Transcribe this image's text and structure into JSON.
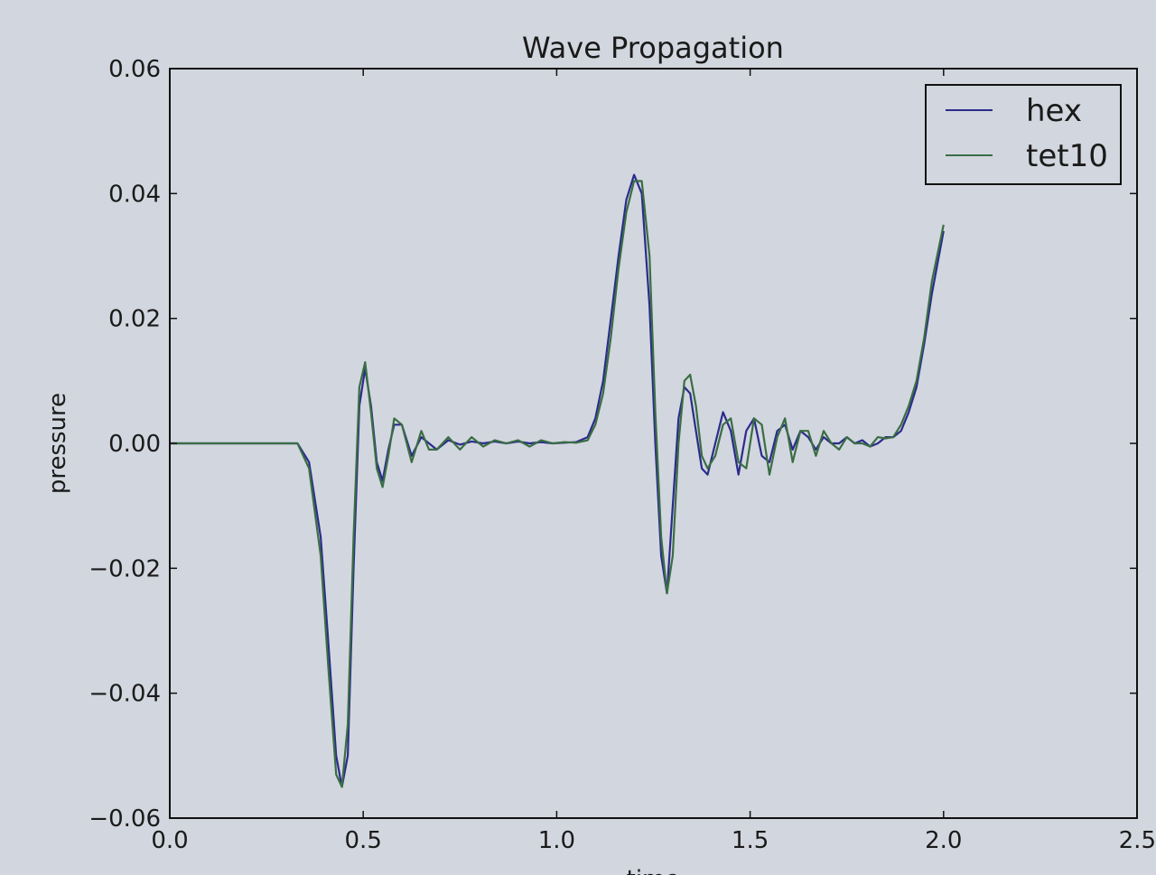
{
  "chart_data": {
    "type": "line",
    "title": "Wave Propagation",
    "xlabel": "time",
    "ylabel": "pressure",
    "xlim": [
      0.0,
      2.5
    ],
    "ylim": [
      -0.06,
      0.06
    ],
    "xticks": [
      "0.0",
      "0.5",
      "1.0",
      "1.5",
      "2.0",
      "2.5"
    ],
    "xtick_values": [
      0.0,
      0.5,
      1.0,
      1.5,
      2.0,
      2.5
    ],
    "yticks": [
      "0.06",
      "0.04",
      "0.02",
      "0.00",
      "−0.02",
      "−0.04",
      "−0.06"
    ],
    "ytick_values": [
      0.06,
      0.04,
      0.02,
      0.0,
      -0.02,
      -0.04,
      -0.06
    ],
    "grid": false,
    "legend_position": "top-right",
    "series": [
      {
        "name": "hex",
        "color": "#2b2b8c",
        "x": [
          0.0,
          0.3,
          0.33,
          0.36,
          0.39,
          0.41,
          0.43,
          0.445,
          0.46,
          0.475,
          0.49,
          0.505,
          0.52,
          0.535,
          0.55,
          0.565,
          0.58,
          0.6,
          0.625,
          0.65,
          0.67,
          0.69,
          0.72,
          0.75,
          0.78,
          0.81,
          0.84,
          0.87,
          0.9,
          0.93,
          0.96,
          0.99,
          1.02,
          1.05,
          1.08,
          1.1,
          1.12,
          1.14,
          1.16,
          1.18,
          1.2,
          1.22,
          1.24,
          1.255,
          1.27,
          1.285,
          1.3,
          1.315,
          1.33,
          1.345,
          1.36,
          1.375,
          1.39,
          1.41,
          1.43,
          1.45,
          1.47,
          1.49,
          1.51,
          1.53,
          1.55,
          1.57,
          1.59,
          1.61,
          1.63,
          1.65,
          1.67,
          1.69,
          1.71,
          1.73,
          1.75,
          1.77,
          1.79,
          1.81,
          1.83,
          1.85,
          1.87,
          1.89,
          1.91,
          1.93,
          1.95,
          1.97,
          2.0
        ],
        "y": [
          0.0,
          0.0,
          0.0,
          -0.003,
          -0.015,
          -0.032,
          -0.05,
          -0.055,
          -0.05,
          -0.02,
          0.006,
          0.012,
          0.006,
          -0.003,
          -0.006,
          -0.001,
          0.003,
          0.003,
          -0.002,
          0.001,
          0.0,
          -0.001,
          0.0005,
          -0.0002,
          0.0003,
          0.0,
          0.0003,
          0.0,
          0.0003,
          0.0,
          0.0002,
          0.0,
          0.0001,
          0.0002,
          0.001,
          0.004,
          0.01,
          0.02,
          0.03,
          0.039,
          0.043,
          0.04,
          0.022,
          0.0,
          -0.018,
          -0.024,
          -0.01,
          0.004,
          0.009,
          0.008,
          0.002,
          -0.004,
          -0.005,
          0.0,
          0.005,
          0.002,
          -0.005,
          0.002,
          0.004,
          -0.002,
          -0.003,
          0.002,
          0.003,
          -0.001,
          0.002,
          0.001,
          -0.001,
          0.001,
          0.0,
          0.0,
          0.001,
          0.0,
          0.0005,
          -0.0005,
          0.0,
          0.001,
          0.001,
          0.002,
          0.005,
          0.009,
          0.016,
          0.024,
          0.034
        ]
      },
      {
        "name": "tet10",
        "color": "#3a6e44",
        "x": [
          0.0,
          0.3,
          0.33,
          0.36,
          0.39,
          0.41,
          0.43,
          0.445,
          0.46,
          0.475,
          0.49,
          0.505,
          0.52,
          0.535,
          0.55,
          0.565,
          0.58,
          0.6,
          0.625,
          0.65,
          0.67,
          0.69,
          0.72,
          0.75,
          0.78,
          0.81,
          0.84,
          0.87,
          0.9,
          0.93,
          0.96,
          0.99,
          1.02,
          1.05,
          1.08,
          1.1,
          1.12,
          1.14,
          1.16,
          1.18,
          1.2,
          1.22,
          1.24,
          1.255,
          1.27,
          1.285,
          1.3,
          1.315,
          1.33,
          1.345,
          1.36,
          1.375,
          1.39,
          1.41,
          1.43,
          1.45,
          1.47,
          1.49,
          1.51,
          1.53,
          1.55,
          1.57,
          1.59,
          1.61,
          1.63,
          1.65,
          1.67,
          1.69,
          1.71,
          1.73,
          1.75,
          1.77,
          1.79,
          1.81,
          1.83,
          1.85,
          1.87,
          1.89,
          1.91,
          1.93,
          1.95,
          1.97,
          2.0
        ],
        "y": [
          0.0,
          0.0,
          0.0,
          -0.004,
          -0.018,
          -0.036,
          -0.053,
          -0.055,
          -0.045,
          -0.015,
          0.009,
          0.013,
          0.005,
          -0.004,
          -0.007,
          -0.002,
          0.004,
          0.003,
          -0.003,
          0.002,
          -0.001,
          -0.001,
          0.001,
          -0.001,
          0.001,
          -0.0005,
          0.0005,
          0.0,
          0.0005,
          -0.0005,
          0.0005,
          0.0,
          0.0002,
          0.0001,
          0.0005,
          0.003,
          0.008,
          0.017,
          0.028,
          0.037,
          0.042,
          0.042,
          0.03,
          0.005,
          -0.015,
          -0.024,
          -0.018,
          0.0,
          0.01,
          0.011,
          0.006,
          -0.002,
          -0.004,
          -0.002,
          0.003,
          0.004,
          -0.003,
          -0.004,
          0.004,
          0.003,
          -0.005,
          0.001,
          0.004,
          -0.003,
          0.002,
          0.002,
          -0.002,
          0.002,
          0.0,
          -0.001,
          0.001,
          0.0,
          0.0,
          -0.0005,
          0.001,
          0.0008,
          0.001,
          0.003,
          0.006,
          0.01,
          0.017,
          0.026,
          0.035
        ]
      }
    ]
  }
}
